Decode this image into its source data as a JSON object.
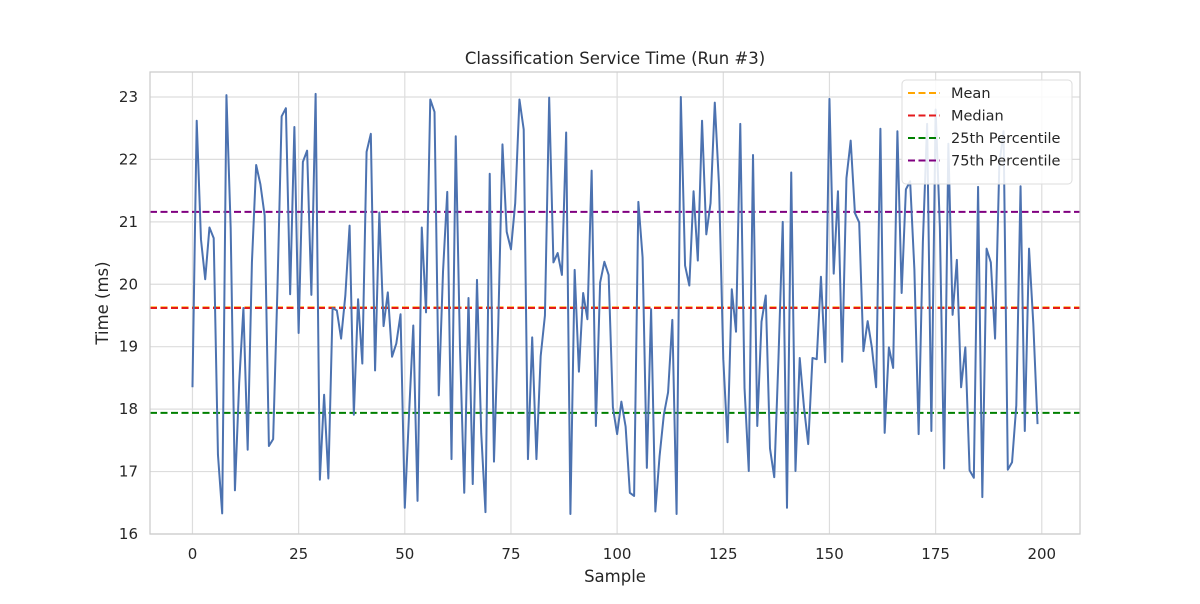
{
  "chart_data": {
    "type": "line",
    "title": "Classification Service Time (Run #3)",
    "xlabel": "Sample",
    "ylabel": "Time (ms)",
    "xlim": [
      -10,
      209
    ],
    "ylim": [
      16,
      23.4
    ],
    "xticks": [
      0,
      25,
      50,
      75,
      100,
      125,
      150,
      175,
      200
    ],
    "yticks": [
      16,
      17,
      18,
      19,
      20,
      21,
      22,
      23
    ],
    "grid": true,
    "legend_position": "top-right",
    "series": [
      {
        "color": "#4c72b0",
        "x_start": 0,
        "x_step": 1,
        "values": [
          18.35,
          22.62,
          20.72,
          20.08,
          20.91,
          20.74,
          17.27,
          16.33,
          23.03,
          20.9,
          16.7,
          18.42,
          19.62,
          17.35,
          20.35,
          21.91,
          21.6,
          21.1,
          17.41,
          17.52,
          19.9,
          22.69,
          22.82,
          19.84,
          22.52,
          19.22,
          21.96,
          22.14,
          19.83,
          23.05,
          16.87,
          18.23,
          16.89,
          19.62,
          19.58,
          19.13,
          19.82,
          20.94,
          17.91,
          19.76,
          18.73,
          22.12,
          22.41,
          18.62,
          21.15,
          19.33,
          19.87,
          18.84,
          19.05,
          19.52,
          16.42,
          17.92,
          19.34,
          16.53,
          20.91,
          19.55,
          22.96,
          22.76,
          18.22,
          20.2,
          21.48,
          17.2,
          22.37,
          18.97,
          16.66,
          19.78,
          16.8,
          20.07,
          17.61,
          16.35,
          21.77,
          17.16,
          19.33,
          22.24,
          20.84,
          20.56,
          21.3,
          22.96,
          22.48,
          17.2,
          19.15,
          17.2,
          18.85,
          19.5,
          22.99,
          20.35,
          20.5,
          20.15,
          22.43,
          16.32,
          20.23,
          18.6,
          19.86,
          19.44,
          21.82,
          17.73,
          20.03,
          20.36,
          20.15,
          18.03,
          17.6,
          18.12,
          17.72,
          16.66,
          16.61,
          21.32,
          20.43,
          17.06,
          19.6,
          16.36,
          17.25,
          17.91,
          18.27,
          19.43,
          16.32,
          23.0,
          20.3,
          19.98,
          21.49,
          20.38,
          22.62,
          20.8,
          21.3,
          22.91,
          21.58,
          18.8,
          17.47,
          19.92,
          19.24,
          22.57,
          18.34,
          17.01,
          22.07,
          17.73,
          19.4,
          19.82,
          17.37,
          16.91,
          18.82,
          21.0,
          16.42,
          21.79,
          17.01,
          18.82,
          18.03,
          17.44,
          18.82,
          18.8,
          20.12,
          18.75,
          22.97,
          20.17,
          21.49,
          18.76,
          21.7,
          22.3,
          21.14,
          20.99,
          18.93,
          19.41,
          18.98,
          18.35,
          22.49,
          17.62,
          18.99,
          18.66,
          22.45,
          19.86,
          21.52,
          21.65,
          20.24,
          17.6,
          20.68,
          22.57,
          17.65,
          22.8,
          20.92,
          17.05,
          22.25,
          19.51,
          20.39,
          18.35,
          18.99,
          17.02,
          16.9,
          21.56,
          16.59,
          20.57,
          20.35,
          19.13,
          21.92,
          22.45,
          17.03,
          17.15,
          18.06,
          21.57,
          17.65,
          20.57,
          19.37,
          17.76
        ]
      }
    ],
    "reference_lines": [
      {
        "name": "Mean",
        "value": 19.63,
        "color": "#ffa500"
      },
      {
        "name": "Median",
        "value": 19.62,
        "color": "#e41a1c"
      },
      {
        "name": "25th Percentile",
        "value": 17.94,
        "color": "#008000"
      },
      {
        "name": "75th Percentile",
        "value": 21.16,
        "color": "#800080"
      }
    ]
  }
}
